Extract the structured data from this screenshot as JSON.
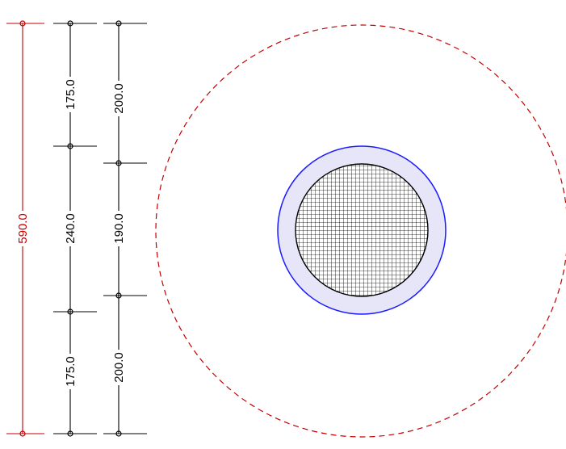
{
  "colors": {
    "overall_dim": "#c00000",
    "dim": "#000000",
    "outer_dashed_circle": "#c00000",
    "ring_stroke": "#1a1aff",
    "ring_fill": "#e6e6f8",
    "core_stroke": "#000000",
    "core_hatch": "#000000"
  },
  "dimensions": {
    "overall": {
      "label": "590.0",
      "value": 590.0
    },
    "inner_chain": [
      {
        "label": "175.0",
        "value": 175.0
      },
      {
        "label": "240.0",
        "value": 240.0
      },
      {
        "label": "175.0",
        "value": 175.0
      }
    ],
    "outer_chain": [
      {
        "label": "200.0",
        "value": 200.0
      },
      {
        "label": "190.0",
        "value": 190.0
      },
      {
        "label": "200.0",
        "value": 200.0
      }
    ]
  },
  "section": {
    "outer_dashed_diameter": 590.0,
    "ring_outer_diameter": 240.0,
    "core_diameter": 190.0
  }
}
